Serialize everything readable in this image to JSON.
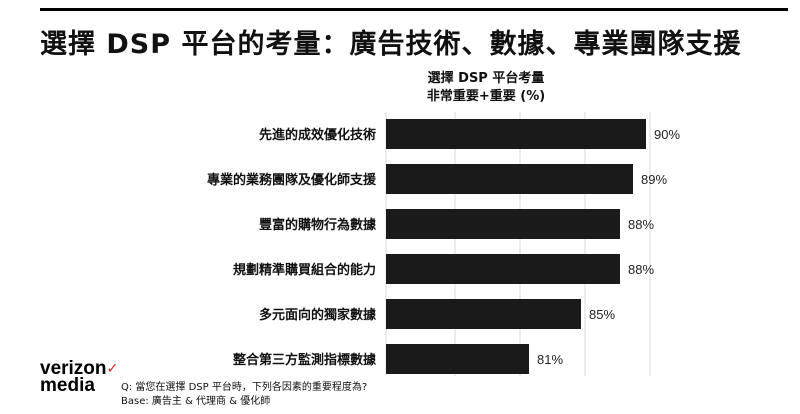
{
  "header": {
    "title": "選擇 DSP 平台的考量：廣告技術、數據、專業團隊支援"
  },
  "chart_data": {
    "type": "bar",
    "orientation": "horizontal",
    "title_lines": [
      "選擇 DSP 平台考量",
      "非常重要+重要 (%)"
    ],
    "categories": [
      "先進的成效優化技術",
      "專業的業務團隊及優化師支援",
      "豐富的購物行為數據",
      "規劃精準購買組合的能力",
      "多元面向的獨家數據",
      "整合第三方監測指標數據"
    ],
    "values": [
      90,
      89,
      88,
      88,
      85,
      81
    ],
    "value_labels": [
      "90%",
      "89%",
      "88%",
      "88%",
      "85%",
      "81%"
    ],
    "xlim": [
      60,
      100
    ],
    "grid": true,
    "bar_color": "#1a1a1a",
    "grid_color": "#d9d9d9"
  },
  "brand": {
    "line1": "verizon",
    "check": "✓",
    "line2": "media",
    "check_color": "#d52b1e"
  },
  "footnote": {
    "question": "Q: 當您在選擇 DSP 平台時，下列各因素的重要程度為?",
    "base": "Base: 廣告主 & 代理商 & 優化師"
  }
}
